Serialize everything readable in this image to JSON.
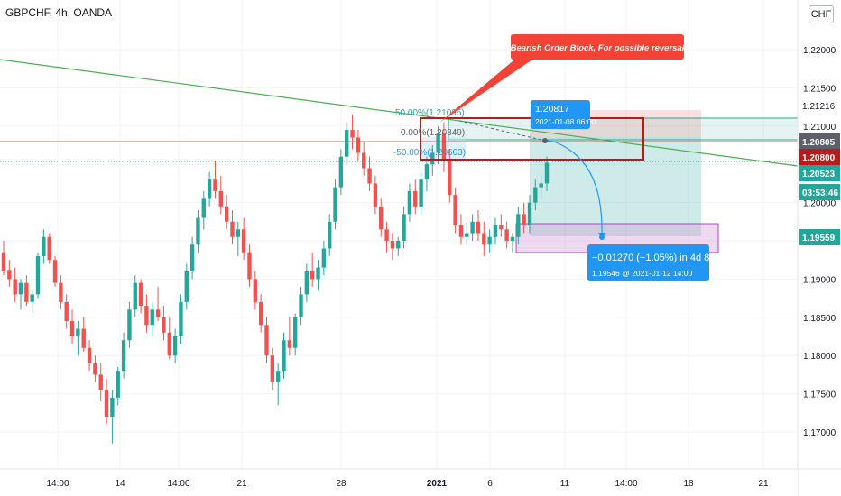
{
  "header": {
    "symbol_line": "GBPCHF, 4h, OANDA",
    "currency_button": "CHF"
  },
  "colors": {
    "up": "#26a69a",
    "down": "#ef5350",
    "trendline": "#4caf50",
    "target_zone": "#ce93d8",
    "order_block": "#b71c1c",
    "callout": "#f44336",
    "projection": "#2196f3"
  },
  "chart_data": {
    "type": "candlestick",
    "y_ticks": [
      "1.22000",
      "1.21500",
      "1.21000",
      "1.20500",
      "1.20000",
      "1.19500",
      "1.19000",
      "1.18500",
      "1.18000",
      "1.17500",
      "1.17000"
    ],
    "x_ticks": [
      "14:00",
      "14",
      "14:00",
      "21",
      "28",
      "2021",
      "6",
      "11",
      "14:00",
      "18",
      "21"
    ],
    "ohlc_sequence_note": "",
    "price_labels": [
      {
        "text": "1.21216",
        "value": 1.21216,
        "kind": "plain"
      },
      {
        "text": "1.20805",
        "value": 1.20805,
        "kind": "grey"
      },
      {
        "text": "1.20800",
        "value": 1.208,
        "kind": "red"
      },
      {
        "text": "1.20523",
        "value": 1.20523,
        "kind": "green"
      },
      {
        "text": "03:53:46",
        "value": 1.2029,
        "kind": "green"
      },
      {
        "text": "1.19559",
        "value": 1.19559,
        "kind": "blue"
      }
    ],
    "fib": {
      "top": "50.00%(1.21095)",
      "mid": "0.00%(1.20849)",
      "bot": "-50.00%(1.20603)"
    },
    "annotation": "Bearish Order Block, For possible reversal",
    "tooltip_top": {
      "price": "1.20817",
      "date": "2021-01-08 06:00"
    },
    "tooltip_bottom": {
      "change": "−0.01270 (−1.05%) in 4d 8h",
      "detail": "1.19546 @ 2021-01-12  14:00"
    },
    "candles": [
      [
        1.1935,
        1.195,
        1.1905,
        1.191
      ],
      [
        1.1912,
        1.1925,
        1.189,
        1.19
      ],
      [
        1.19,
        1.1915,
        1.187,
        1.188
      ],
      [
        1.188,
        1.19,
        1.186,
        1.1895
      ],
      [
        1.1895,
        1.1905,
        1.1865,
        1.187
      ],
      [
        1.187,
        1.1885,
        1.1855,
        1.188
      ],
      [
        1.188,
        1.1935,
        1.1875,
        1.193
      ],
      [
        1.193,
        1.1965,
        1.192,
        1.1955
      ],
      [
        1.1955,
        1.196,
        1.192,
        1.1925
      ],
      [
        1.1925,
        1.193,
        1.189,
        1.1895
      ],
      [
        1.1895,
        1.1905,
        1.186,
        1.187
      ],
      [
        1.187,
        1.188,
        1.1835,
        1.1845
      ],
      [
        1.1845,
        1.186,
        1.1815,
        1.1825
      ],
      [
        1.1825,
        1.1845,
        1.18,
        1.1835
      ],
      [
        1.1835,
        1.185,
        1.1805,
        1.181
      ],
      [
        1.181,
        1.182,
        1.178,
        1.179
      ],
      [
        1.179,
        1.18,
        1.1765,
        1.1775
      ],
      [
        1.1775,
        1.179,
        1.174,
        1.1755
      ],
      [
        1.1755,
        1.177,
        1.171,
        1.172
      ],
      [
        1.172,
        1.1755,
        1.1685,
        1.1745
      ],
      [
        1.1745,
        1.1785,
        1.1735,
        1.178
      ],
      [
        1.178,
        1.183,
        1.177,
        1.182
      ],
      [
        1.182,
        1.187,
        1.181,
        1.186
      ],
      [
        1.186,
        1.1905,
        1.185,
        1.1895
      ],
      [
        1.1895,
        1.19,
        1.1855,
        1.1865
      ],
      [
        1.1865,
        1.188,
        1.183,
        1.184
      ],
      [
        1.184,
        1.187,
        1.1825,
        1.186
      ],
      [
        1.186,
        1.189,
        1.1845,
        1.185
      ],
      [
        1.185,
        1.1865,
        1.182,
        1.183
      ],
      [
        1.183,
        1.185,
        1.1795,
        1.18
      ],
      [
        1.18,
        1.1835,
        1.179,
        1.1825
      ],
      [
        1.1825,
        1.188,
        1.1815,
        1.187
      ],
      [
        1.187,
        1.192,
        1.186,
        1.191
      ],
      [
        1.191,
        1.1955,
        1.19,
        1.1945
      ],
      [
        1.1945,
        1.199,
        1.1935,
        1.198
      ],
      [
        1.198,
        1.2015,
        1.1965,
        1.2005
      ],
      [
        1.2005,
        1.204,
        1.1995,
        1.203
      ],
      [
        1.203,
        1.2055,
        1.2005,
        1.2015
      ],
      [
        1.2015,
        1.2035,
        1.1985,
        1.1995
      ],
      [
        1.1995,
        1.201,
        1.1965,
        1.1975
      ],
      [
        1.1975,
        1.199,
        1.1945,
        1.1955
      ],
      [
        1.1955,
        1.1975,
        1.193,
        1.1965
      ],
      [
        1.1965,
        1.198,
        1.1925,
        1.1935
      ],
      [
        1.1935,
        1.1945,
        1.189,
        1.19
      ],
      [
        1.19,
        1.191,
        1.186,
        1.187
      ],
      [
        1.187,
        1.188,
        1.183,
        1.184
      ],
      [
        1.184,
        1.185,
        1.179,
        1.18
      ],
      [
        1.18,
        1.181,
        1.1755,
        1.1765
      ],
      [
        1.1765,
        1.179,
        1.1735,
        1.178
      ],
      [
        1.178,
        1.183,
        1.177,
        1.182
      ],
      [
        1.182,
        1.185,
        1.18,
        1.181
      ],
      [
        1.181,
        1.1855,
        1.18,
        1.185
      ],
      [
        1.185,
        1.189,
        1.184,
        1.188
      ],
      [
        1.188,
        1.192,
        1.187,
        1.191
      ],
      [
        1.191,
        1.1935,
        1.189,
        1.19
      ],
      [
        1.19,
        1.1925,
        1.1885,
        1.1915
      ],
      [
        1.1915,
        1.195,
        1.1905,
        1.194
      ],
      [
        1.194,
        1.1985,
        1.193,
        1.1975
      ],
      [
        1.1975,
        1.203,
        1.1965,
        1.202
      ],
      [
        1.202,
        1.207,
        1.201,
        1.206
      ],
      [
        1.206,
        1.2105,
        1.205,
        1.2095
      ],
      [
        1.2095,
        1.2115,
        1.207,
        1.2085
      ],
      [
        1.2085,
        1.2095,
        1.2055,
        1.2065
      ],
      [
        1.2065,
        1.208,
        1.2035,
        1.2045
      ],
      [
        1.2045,
        1.206,
        1.2015,
        1.2025
      ],
      [
        1.2025,
        1.2035,
        1.1985,
        1.1995
      ],
      [
        1.1995,
        1.2005,
        1.1955,
        1.1965
      ],
      [
        1.1965,
        1.1975,
        1.1935,
        1.195
      ],
      [
        1.195,
        1.196,
        1.1925,
        1.194
      ],
      [
        1.194,
        1.1955,
        1.193,
        1.195
      ],
      [
        1.195,
        1.1995,
        1.194,
        1.1985
      ],
      [
        1.1985,
        1.2025,
        1.1975,
        1.2015
      ],
      [
        1.2015,
        1.203,
        1.1985,
        1.1995
      ],
      [
        1.1995,
        1.204,
        1.1985,
        1.203
      ],
      [
        1.203,
        1.206,
        1.2015,
        1.205
      ],
      [
        1.205,
        1.2075,
        1.2035,
        1.2065
      ],
      [
        1.2065,
        1.21,
        1.205,
        1.209
      ],
      [
        1.209,
        1.2105,
        1.204,
        1.2055
      ],
      [
        1.2055,
        1.207,
        1.2,
        1.201
      ],
      [
        1.201,
        1.202,
        1.196,
        1.197
      ],
      [
        1.197,
        1.1985,
        1.1945,
        1.1955
      ],
      [
        1.1955,
        1.1975,
        1.1945,
        1.196
      ],
      [
        1.196,
        1.1985,
        1.195,
        1.1975
      ],
      [
        1.1975,
        1.199,
        1.195,
        1.196
      ],
      [
        1.196,
        1.1975,
        1.193,
        1.1945
      ],
      [
        1.1945,
        1.1965,
        1.1935,
        1.1955
      ],
      [
        1.1955,
        1.198,
        1.1945,
        1.197
      ],
      [
        1.197,
        1.1985,
        1.1955,
        1.1965
      ],
      [
        1.1965,
        1.1975,
        1.194,
        1.195
      ],
      [
        1.195,
        1.196,
        1.1935,
        1.1955
      ],
      [
        1.1955,
        1.1995,
        1.1945,
        1.1985
      ],
      [
        1.1985,
        1.2,
        1.196,
        1.197
      ],
      [
        1.197,
        1.201,
        1.196,
        1.2
      ],
      [
        1.2,
        1.203,
        1.199,
        1.202
      ],
      [
        1.202,
        1.2035,
        1.2005,
        1.2025
      ],
      [
        1.2025,
        1.206,
        1.2015,
        1.2052
      ]
    ],
    "ylim": [
      1.1655,
      1.2265
    ]
  }
}
